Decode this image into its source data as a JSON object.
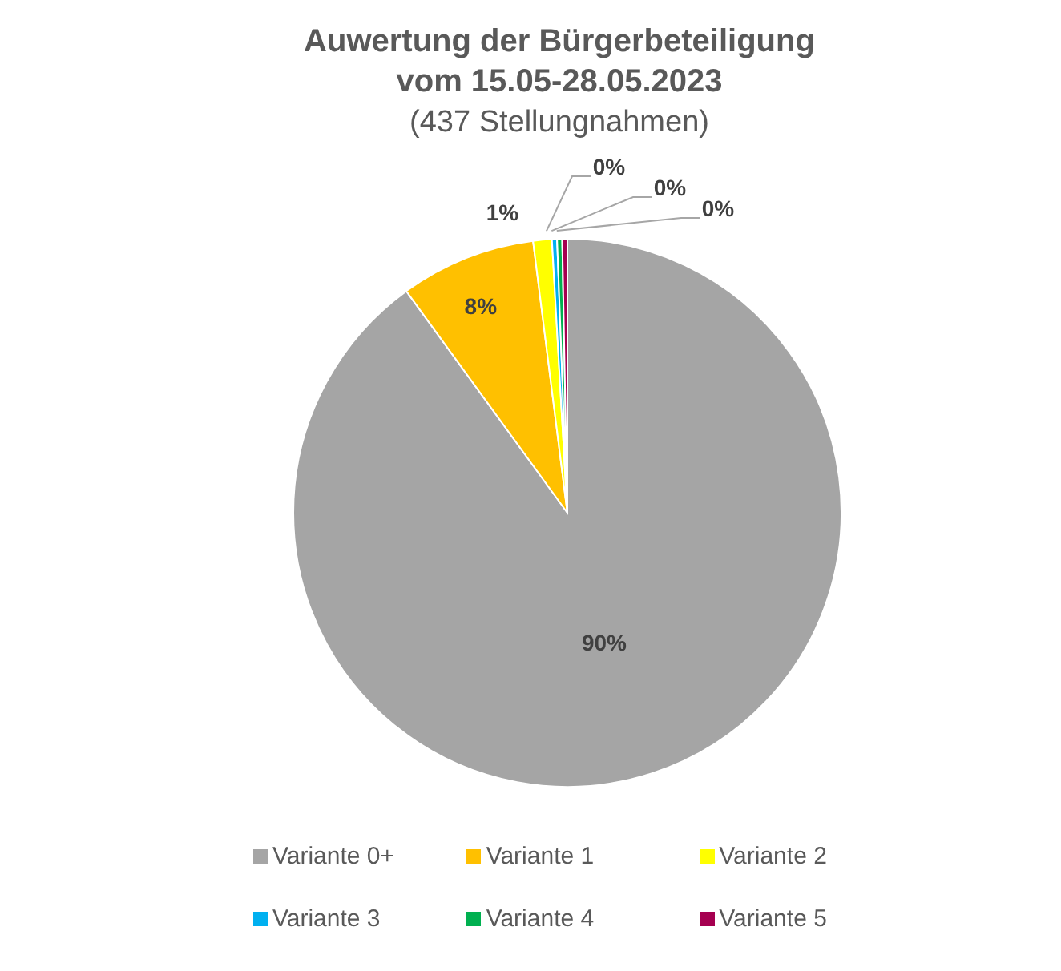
{
  "chart_data": {
    "type": "pie",
    "title": "Auwertung der Bürgerbeteiligung vom 15.05-28.05.2023",
    "subtitle": "(437 Stellungnahmen)",
    "categories": [
      "Variante 0+",
      "Variante 1",
      "Variante 2",
      "Variante 3",
      "Variante 4",
      "Variante 5"
    ],
    "values": [
      90,
      8,
      1.1,
      0.3,
      0.3,
      0.3
    ],
    "value_labels": [
      "90%",
      "8%",
      "1%",
      "0%",
      "0%",
      "0%"
    ],
    "colors": [
      "#a5a5a5",
      "#ffc000",
      "#ffff00",
      "#00b0f0",
      "#00b050",
      "#a50050"
    ],
    "legend": "bottom"
  }
}
